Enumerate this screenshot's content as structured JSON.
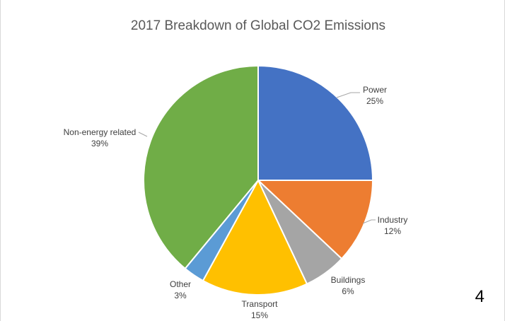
{
  "chart_data": {
    "type": "pie",
    "title": "2017 Breakdown of Global CO2 Emissions",
    "start_angle_deg": 0,
    "direction": "clockwise",
    "slices": [
      {
        "label": "Power",
        "value": 25,
        "value_label": "25%",
        "color": "#4472c4"
      },
      {
        "label": "Industry",
        "value": 12,
        "value_label": "12%",
        "color": "#ed7d31"
      },
      {
        "label": "Buildings",
        "value": 6,
        "value_label": "6%",
        "color": "#a5a5a5"
      },
      {
        "label": "Transport",
        "value": 15,
        "value_label": "15%",
        "color": "#ffc000"
      },
      {
        "label": "Other",
        "value": 3,
        "value_label": "3%",
        "color": "#5b9bd5"
      },
      {
        "label": "Non-energy related",
        "value": 39,
        "value_label": "39%",
        "color": "#70ad47"
      }
    ],
    "legend": "none"
  },
  "page_number": "4"
}
